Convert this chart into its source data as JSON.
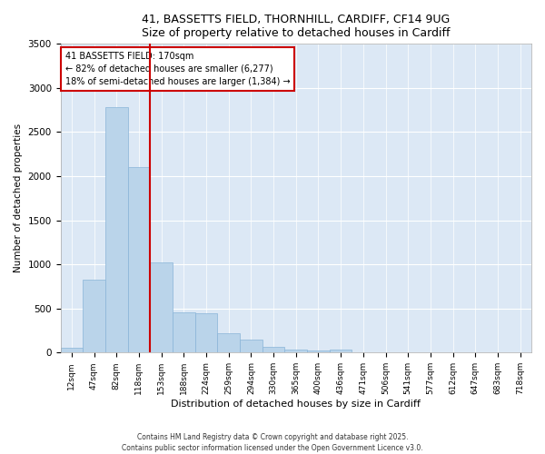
{
  "title_line1": "41, BASSETTS FIELD, THORNHILL, CARDIFF, CF14 9UG",
  "title_line2": "Size of property relative to detached houses in Cardiff",
  "xlabel": "Distribution of detached houses by size in Cardiff",
  "ylabel": "Number of detached properties",
  "bar_color": "#bad4ea",
  "bar_edge_color": "#89b4d8",
  "vline_color": "#cc0000",
  "annotation_text": "41 BASSETTS FIELD: 170sqm\n← 82% of detached houses are smaller (6,277)\n18% of semi-detached houses are larger (1,384) →",
  "categories": [
    "12sqm",
    "47sqm",
    "82sqm",
    "118sqm",
    "153sqm",
    "188sqm",
    "224sqm",
    "259sqm",
    "294sqm",
    "330sqm",
    "365sqm",
    "400sqm",
    "436sqm",
    "471sqm",
    "506sqm",
    "541sqm",
    "577sqm",
    "612sqm",
    "647sqm",
    "683sqm",
    "718sqm"
  ],
  "values": [
    55,
    830,
    2780,
    2100,
    1020,
    460,
    450,
    220,
    145,
    70,
    30,
    20,
    35,
    5,
    2,
    0,
    0,
    0,
    0,
    0,
    0
  ],
  "ylim": [
    0,
    3500
  ],
  "yticks": [
    0,
    500,
    1000,
    1500,
    2000,
    2500,
    3000,
    3500
  ],
  "background_color": "#dce8f5",
  "footer_line1": "Contains HM Land Registry data © Crown copyright and database right 2025.",
  "footer_line2": "Contains public sector information licensed under the Open Government Licence v3.0."
}
